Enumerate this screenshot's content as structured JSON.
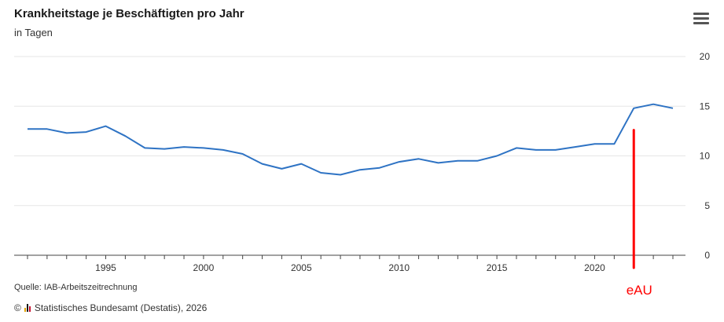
{
  "header": {
    "title": "Krankheitstage je Beschäftigten pro Jahr",
    "subtitle": "in Tagen",
    "menu_icon": "hamburger-menu-icon"
  },
  "footer": {
    "source": "Quelle: IAB-Arbeitszeitrechnung",
    "copyright_symbol": "©",
    "copyright": "Statistisches Bundesamt (Destatis), 2026"
  },
  "annotation": {
    "label": "eAU",
    "year": 2022,
    "from_value": 12.6,
    "color": "#ff0000"
  },
  "colors": {
    "line": "#2e73c4",
    "grid": "#e6e6e6",
    "logo": [
      "#e2a300",
      "#1a1a1a",
      "#c8102e"
    ]
  },
  "chart_data": {
    "type": "line",
    "title": "Krankheitstage je Beschäftigten pro Jahr",
    "subtitle": "in Tagen",
    "xlabel": "",
    "ylabel": "",
    "xlim": [
      1991,
      2024
    ],
    "ylim": [
      0,
      20
    ],
    "yticks": [
      0,
      5,
      10,
      15,
      20
    ],
    "xticks": [
      1995,
      2000,
      2005,
      2010,
      2015,
      2020
    ],
    "grid": true,
    "legend": "none",
    "x": [
      1991,
      1992,
      1993,
      1994,
      1995,
      1996,
      1997,
      1998,
      1999,
      2000,
      2001,
      2002,
      2003,
      2004,
      2005,
      2006,
      2007,
      2008,
      2009,
      2010,
      2011,
      2012,
      2013,
      2014,
      2015,
      2016,
      2017,
      2018,
      2019,
      2020,
      2021,
      2022,
      2023,
      2024
    ],
    "values": [
      12.7,
      12.7,
      12.3,
      12.4,
      13.0,
      12.0,
      10.8,
      10.7,
      10.9,
      10.8,
      10.6,
      10.2,
      9.2,
      8.7,
      9.2,
      8.3,
      8.1,
      8.6,
      8.8,
      9.4,
      9.7,
      9.3,
      9.5,
      9.5,
      10.0,
      10.8,
      10.6,
      10.6,
      10.9,
      11.2,
      11.2,
      14.8,
      15.2,
      14.8
    ]
  }
}
